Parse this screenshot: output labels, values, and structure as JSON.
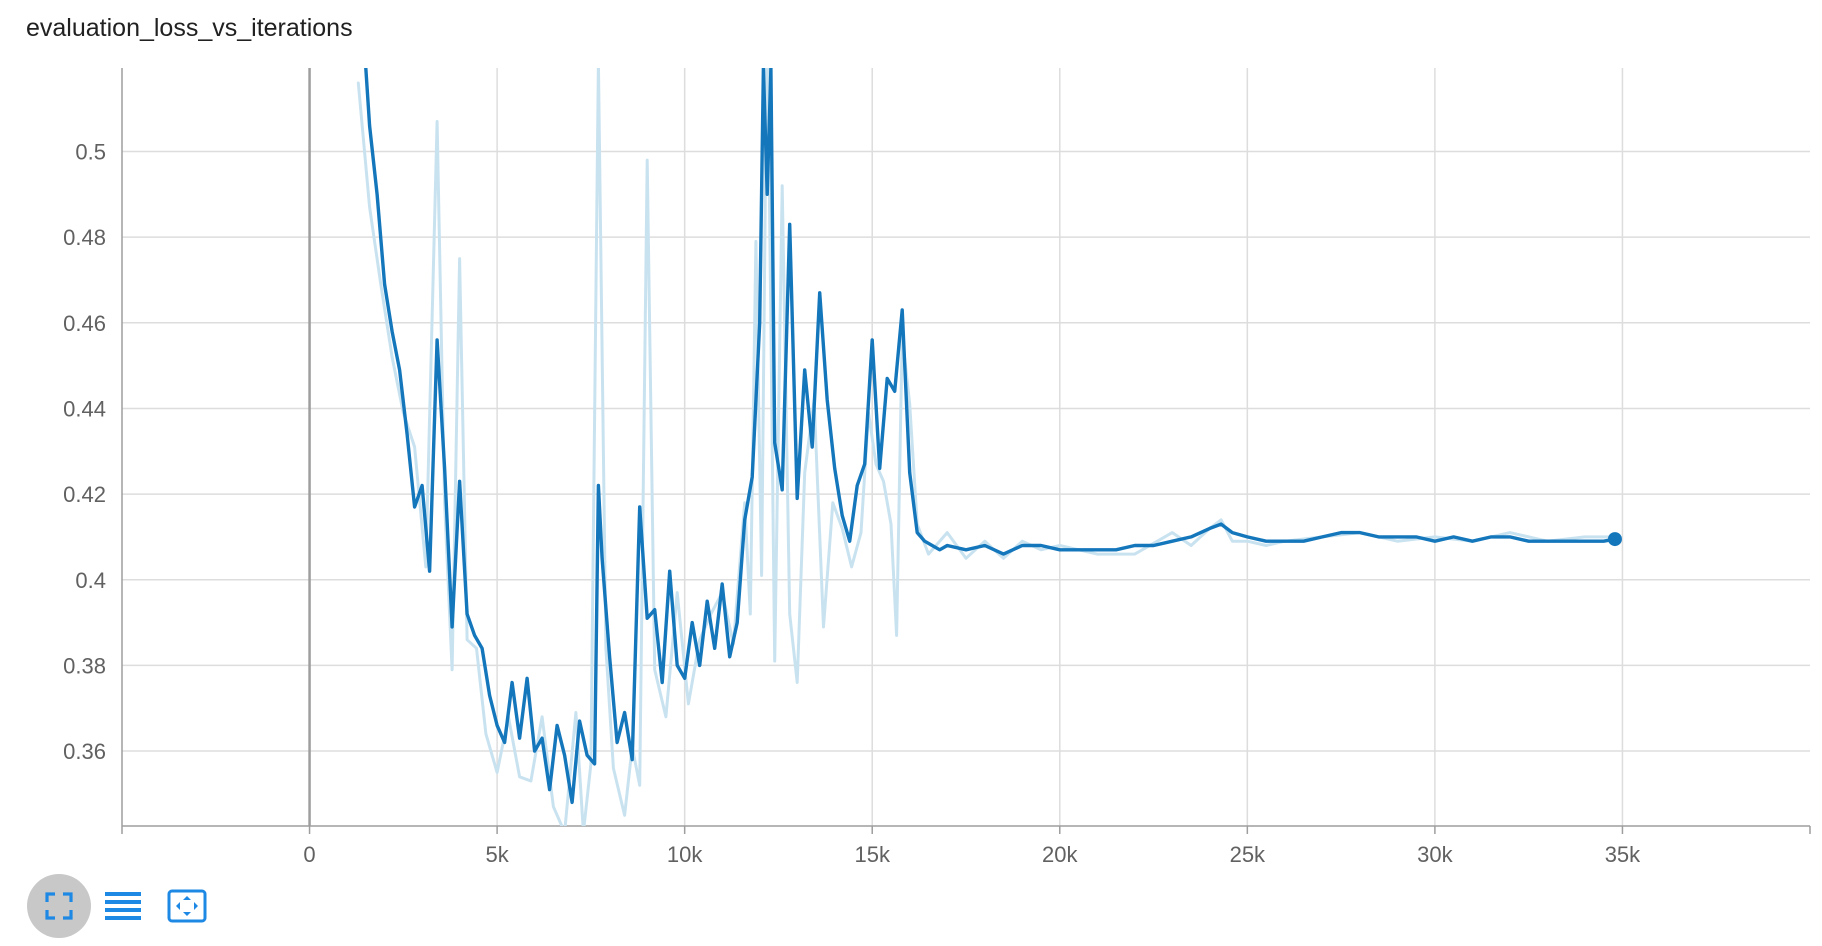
{
  "card": {
    "title": "evaluation_loss_vs_iterations"
  },
  "toolbar": {
    "buttons": [
      {
        "icon": "fullscreen-icon",
        "active": true
      },
      {
        "icon": "log-scale-icon",
        "active": false
      },
      {
        "icon": "fit-domain-icon",
        "active": false
      }
    ],
    "accent_color": "#1e88e5",
    "active_bg": "#c8c8c8"
  },
  "chart_data": {
    "type": "line",
    "title": "evaluation_loss_vs_iterations",
    "xlabel": "",
    "ylabel": "",
    "xlim": [
      -5000,
      40000
    ],
    "ylim": [
      0.3425,
      0.5195
    ],
    "x_ticks": [
      0,
      5000,
      10000,
      15000,
      20000,
      25000,
      30000,
      35000
    ],
    "x_tick_labels": [
      "0",
      "5k",
      "10k",
      "15k",
      "20k",
      "25k",
      "30k",
      "35k"
    ],
    "y_ticks": [
      0.36,
      0.38,
      0.4,
      0.42,
      0.44,
      0.46,
      0.48,
      0.5
    ],
    "y_tick_labels": [
      "0.36",
      "0.38",
      "0.4",
      "0.42",
      "0.44",
      "0.46",
      "0.48",
      "0.5"
    ],
    "grid": true,
    "colors": {
      "smoothed": "#1476bb",
      "raw": "#c9e2f0",
      "grid": "#dddddd",
      "zero_line": "#9e9e9e"
    },
    "series": [
      {
        "style": "raw",
        "x": [
          1300,
          1600,
          1900,
          2200,
          2500,
          2800,
          3100,
          3400,
          3600,
          3800,
          4000,
          4200,
          4450,
          4700,
          5000,
          5300,
          5600,
          5900,
          6200,
          6500,
          6800,
          7100,
          7300,
          7500,
          7700,
          7900,
          8100,
          8400,
          8600,
          8800,
          9000,
          9200,
          9500,
          9800,
          10100,
          10400,
          10700,
          11000,
          11300,
          11600,
          11750,
          11900,
          12050,
          12200,
          12400,
          12600,
          12800,
          13000,
          13200,
          13450,
          13700,
          13950,
          14200,
          14450,
          14700,
          14900,
          15100,
          15300,
          15500,
          15650,
          15800,
          16000,
          16200,
          16500,
          17000,
          17500,
          18000,
          18500,
          19000,
          19500,
          20000,
          21000,
          22000,
          23000,
          23500,
          24000,
          24300,
          24600,
          25000,
          25500,
          26000,
          27000,
          28000,
          29000,
          30000,
          31000,
          32000,
          33000,
          34000,
          34800
        ],
        "y": [
          0.516,
          0.487,
          0.469,
          0.452,
          0.439,
          0.431,
          0.403,
          0.507,
          0.418,
          0.379,
          0.475,
          0.386,
          0.384,
          0.364,
          0.355,
          0.368,
          0.354,
          0.353,
          0.368,
          0.347,
          0.341,
          0.369,
          0.341,
          0.357,
          0.521,
          0.384,
          0.356,
          0.345,
          0.361,
          0.352,
          0.498,
          0.379,
          0.368,
          0.397,
          0.371,
          0.386,
          0.392,
          0.397,
          0.385,
          0.418,
          0.392,
          0.479,
          0.401,
          0.535,
          0.381,
          0.492,
          0.392,
          0.376,
          0.425,
          0.442,
          0.389,
          0.418,
          0.412,
          0.403,
          0.411,
          0.439,
          0.427,
          0.423,
          0.413,
          0.387,
          0.457,
          0.441,
          0.413,
          0.406,
          0.411,
          0.405,
          0.409,
          0.405,
          0.409,
          0.407,
          0.408,
          0.406,
          0.406,
          0.411,
          0.408,
          0.412,
          0.414,
          0.409,
          0.409,
          0.408,
          0.409,
          0.41,
          0.411,
          0.409,
          0.41,
          0.409,
          0.411,
          0.409,
          0.41,
          0.41
        ]
      },
      {
        "style": "smoothed",
        "x": [
          1500,
          1600,
          1800,
          2000,
          2200,
          2400,
          2600,
          2800,
          3000,
          3200,
          3400,
          3600,
          3800,
          4000,
          4200,
          4400,
          4600,
          4800,
          5000,
          5200,
          5400,
          5600,
          5800,
          6000,
          6200,
          6400,
          6600,
          6800,
          7000,
          7200,
          7400,
          7600,
          7700,
          7800,
          8000,
          8200,
          8400,
          8600,
          8800,
          9000,
          9200,
          9400,
          9600,
          9800,
          10000,
          10200,
          10400,
          10600,
          10800,
          11000,
          11200,
          11400,
          11600,
          11800,
          12000,
          12100,
          12200,
          12300,
          12400,
          12600,
          12800,
          13000,
          13200,
          13400,
          13600,
          13800,
          14000,
          14200,
          14400,
          14600,
          14800,
          15000,
          15200,
          15400,
          15600,
          15800,
          16000,
          16200,
          16400,
          16600,
          16800,
          17000,
          17500,
          18000,
          18500,
          19000,
          19500,
          20000,
          20500,
          21000,
          21500,
          22000,
          22500,
          23000,
          23500,
          24000,
          24300,
          24600,
          25000,
          25500,
          26000,
          26500,
          27000,
          27500,
          28000,
          28500,
          29000,
          29500,
          30000,
          30500,
          31000,
          31500,
          32000,
          32500,
          33000,
          33500,
          34000,
          34500,
          34800
        ],
        "y": [
          0.5195,
          0.506,
          0.49,
          0.469,
          0.458,
          0.449,
          0.434,
          0.417,
          0.422,
          0.402,
          0.456,
          0.426,
          0.389,
          0.423,
          0.392,
          0.387,
          0.384,
          0.373,
          0.366,
          0.362,
          0.376,
          0.363,
          0.377,
          0.36,
          0.363,
          0.351,
          0.366,
          0.359,
          0.348,
          0.367,
          0.359,
          0.357,
          0.422,
          0.405,
          0.382,
          0.362,
          0.369,
          0.358,
          0.417,
          0.391,
          0.393,
          0.376,
          0.402,
          0.38,
          0.377,
          0.39,
          0.38,
          0.395,
          0.384,
          0.399,
          0.382,
          0.39,
          0.414,
          0.424,
          0.46,
          0.5195,
          0.49,
          0.5195,
          0.432,
          0.421,
          0.483,
          0.419,
          0.449,
          0.431,
          0.467,
          0.442,
          0.426,
          0.415,
          0.409,
          0.422,
          0.427,
          0.456,
          0.426,
          0.447,
          0.444,
          0.463,
          0.425,
          0.411,
          0.409,
          0.408,
          0.407,
          0.408,
          0.407,
          0.408,
          0.406,
          0.408,
          0.408,
          0.407,
          0.407,
          0.407,
          0.407,
          0.408,
          0.408,
          0.409,
          0.41,
          0.412,
          0.413,
          0.411,
          0.41,
          0.409,
          0.409,
          0.409,
          0.41,
          0.411,
          0.411,
          0.41,
          0.41,
          0.41,
          0.409,
          0.41,
          0.409,
          0.41,
          0.41,
          0.409,
          0.409,
          0.409,
          0.409,
          0.409,
          0.4095
        ]
      }
    ]
  }
}
